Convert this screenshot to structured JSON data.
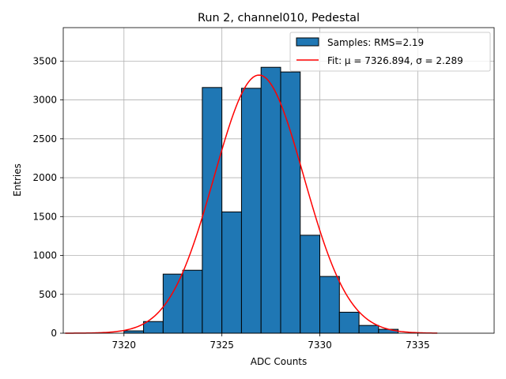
{
  "chart_data": {
    "type": "bar",
    "title": "Run 2, channel010, Pedestal",
    "xlabel": "ADC Counts",
    "ylabel": "Entries",
    "xlim": [
      7316.9,
      7338.9
    ],
    "ylim": [
      0,
      3930
    ],
    "xticks": [
      7320,
      7325,
      7330,
      7335
    ],
    "yticks": [
      0,
      500,
      1000,
      1500,
      2000,
      2500,
      3000,
      3500
    ],
    "grid": true,
    "legend_position": "top-right",
    "bins": [
      {
        "left": 7320,
        "right": 7321,
        "value": 30
      },
      {
        "left": 7321,
        "right": 7322,
        "value": 150
      },
      {
        "left": 7322,
        "right": 7323,
        "value": 760
      },
      {
        "left": 7323,
        "right": 7324,
        "value": 810
      },
      {
        "left": 7324,
        "right": 7325,
        "value": 3160
      },
      {
        "left": 7325,
        "right": 7326,
        "value": 1560
      },
      {
        "left": 7326,
        "right": 7327,
        "value": 3150
      },
      {
        "left": 7327,
        "right": 7328,
        "value": 3420
      },
      {
        "left": 7328,
        "right": 7329,
        "value": 3360
      },
      {
        "left": 7329,
        "right": 7330,
        "value": 1260
      },
      {
        "left": 7330,
        "right": 7331,
        "value": 730
      },
      {
        "left": 7331,
        "right": 7332,
        "value": 270
      },
      {
        "left": 7332,
        "right": 7333,
        "value": 100
      },
      {
        "left": 7333,
        "right": 7334,
        "value": 50
      }
    ],
    "fit": {
      "mu": 7326.894,
      "sigma": 2.289,
      "amplitude": 3320,
      "x_range": [
        7317,
        7336
      ]
    },
    "series": [
      {
        "name": "Samples: RMS=2.19",
        "kind": "histogram",
        "color": "#1f77b4"
      },
      {
        "name": "Fit: μ = 7326.894, σ = 2.289",
        "kind": "line",
        "color": "#ff0000"
      }
    ]
  }
}
